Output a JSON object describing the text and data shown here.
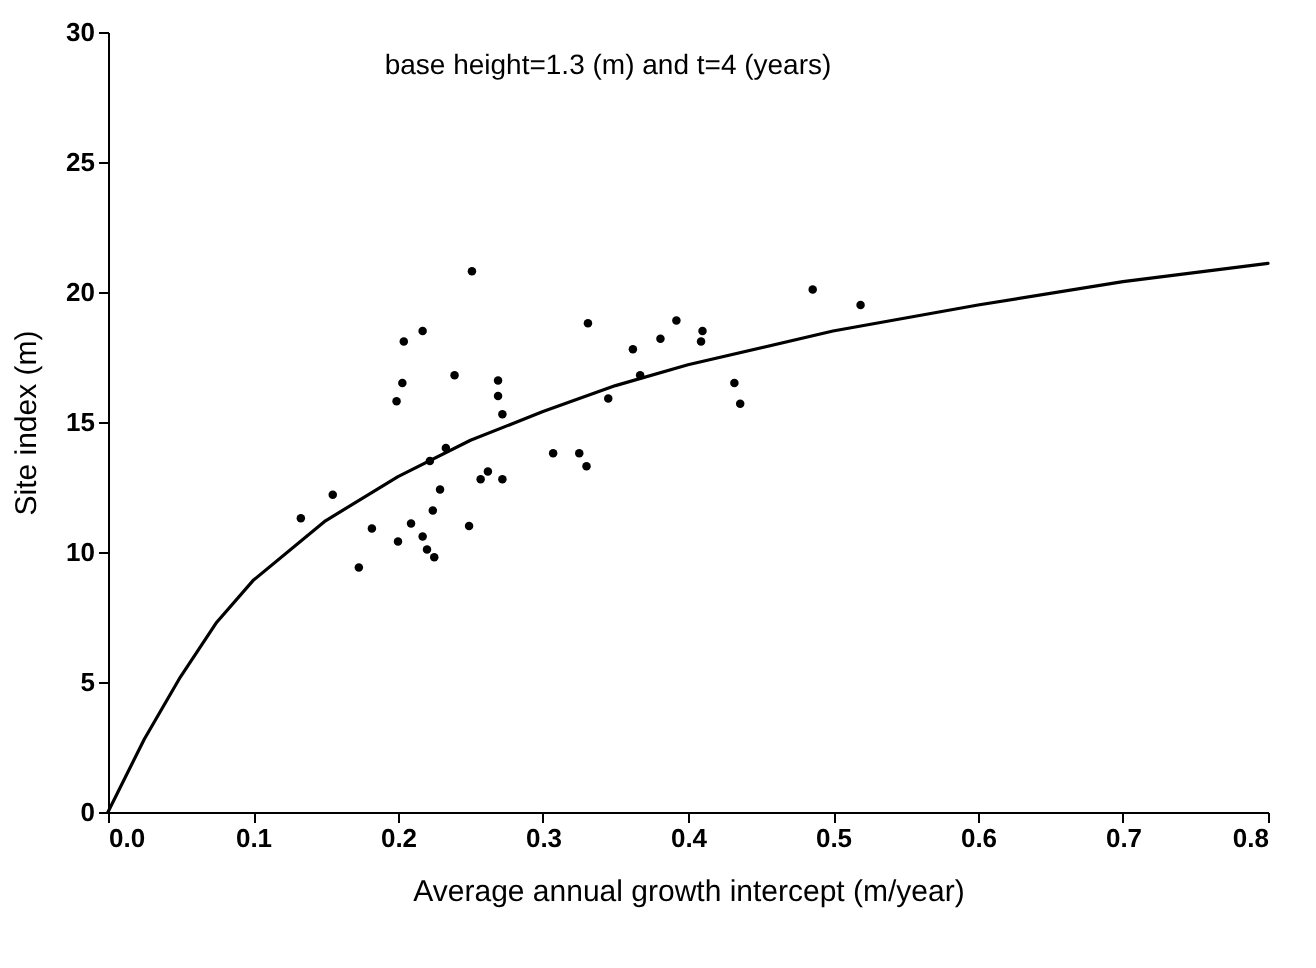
{
  "chart_data": {
    "type": "scatter",
    "title": "base height=1.3 (m) and t=4 (years)",
    "xlabel": "Average annual growth intercept (m/year)",
    "ylabel": "Site index (m)",
    "xlim": [
      0,
      0.8
    ],
    "xticks": [
      {
        "value": 0,
        "label": "0.0"
      },
      0.1,
      0.2,
      0.3,
      0.4,
      0.5,
      0.6,
      0.7,
      0.8
    ],
    "ylim": [
      0,
      30
    ],
    "yticks": [
      0,
      5,
      10,
      15,
      20,
      25,
      30
    ],
    "grid": false,
    "series": [
      {
        "marker": "circle",
        "color": "#000000",
        "x": [
          0.251,
          0.331,
          0.204,
          0.217,
          0.203,
          0.199,
          0.239,
          0.269,
          0.269,
          0.272,
          0.345,
          0.233,
          0.222,
          0.307,
          0.325,
          0.33,
          0.257,
          0.262,
          0.272,
          0.229,
          0.155,
          0.133,
          0.224,
          0.182,
          0.209,
          0.249,
          0.2,
          0.217,
          0.22,
          0.225,
          0.173,
          0.486,
          0.519,
          0.392,
          0.381,
          0.41,
          0.409,
          0.362,
          0.367,
          0.432,
          0.436
        ],
        "values": [
          20.8,
          18.8,
          18.1,
          18.5,
          16.5,
          15.8,
          16.8,
          16.6,
          16.0,
          15.3,
          15.9,
          14.0,
          13.5,
          13.8,
          13.8,
          13.3,
          12.8,
          13.1,
          12.8,
          12.4,
          12.2,
          11.3,
          11.6,
          10.9,
          11.1,
          11.0,
          10.4,
          10.6,
          10.1,
          9.8,
          9.4,
          20.1,
          19.5,
          18.9,
          18.2,
          18.5,
          18.1,
          17.8,
          16.8,
          16.5,
          15.7
        ]
      },
      {
        "type": "line",
        "color": "#000000",
        "line_style": "solid",
        "x": [
          0,
          0.025,
          0.05,
          0.075,
          0.1,
          0.15,
          0.2,
          0.25,
          0.3,
          0.35,
          0.4,
          0.5,
          0.6,
          0.7,
          0.8
        ],
        "values": [
          0,
          2.8,
          5.2,
          7.3,
          8.9,
          11.2,
          12.9,
          14.3,
          15.4,
          16.4,
          17.2,
          18.5,
          19.5,
          20.4,
          21.1
        ]
      }
    ]
  }
}
